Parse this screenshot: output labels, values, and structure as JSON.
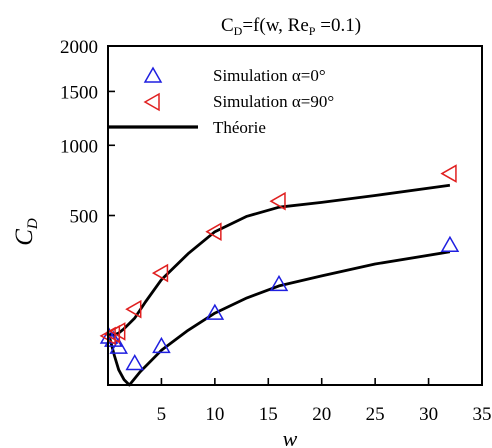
{
  "chart_data": {
    "type": "scatter",
    "title_main": "C",
    "title_main_sub": "D",
    "title_rest_1": "=f(w, Re",
    "title_rest_sub": "P",
    "title_rest_2": " =0.1)",
    "xlabel": "w",
    "ylabel_main": "C",
    "ylabel_sub": "D",
    "xlim": [
      0,
      35
    ],
    "ylim": [
      0,
      2000
    ],
    "y_scale": "sqrt",
    "xticks": [
      5,
      10,
      15,
      20,
      25,
      30,
      35
    ],
    "yticks": [
      500,
      1000,
      1500,
      2000
    ],
    "series": [
      {
        "name": "Simulation α=0°",
        "marker": "triangle-up",
        "color": "#1f1fe0",
        "x": [
          0.1,
          0.5,
          1,
          2.5,
          5,
          10,
          16,
          32
        ],
        "y": [
          40,
          35,
          25,
          8,
          26,
          90,
          176,
          340
        ]
      },
      {
        "name": "Simulation α=90°",
        "marker": "triangle-left",
        "color": "#e02020",
        "x": [
          0.1,
          0.5,
          1,
          2.5,
          5,
          10,
          16,
          32
        ],
        "y": [
          42,
          45,
          50,
          100,
          218,
          409,
          588,
          778
        ]
      },
      {
        "name": "Théorie",
        "kind": "line",
        "color": "#000000",
        "curves": [
          {
            "x": [
              0.1,
              0.3,
              0.6,
              1,
              1.5,
              2,
              3,
              5,
              7.5,
              10,
              13,
              16,
              20,
              25,
              32
            ],
            "y": [
              42,
              30,
              15,
              4,
              0.5,
              0,
              3,
              21,
              52,
              90,
              132,
              171,
              207,
              255,
              309
            ]
          },
          {
            "x": [
              0.1,
              0.5,
              1,
              1.5,
              2.5,
              3.5,
              5,
              7.5,
              10,
              13,
              16,
              20,
              25,
              32
            ],
            "y": [
              45,
              43,
              47,
              55,
              78,
              120,
              193,
              300,
              409,
              495,
              550,
              580,
              625,
              695
            ]
          }
        ]
      }
    ],
    "legend_position": "top-left-inside"
  }
}
